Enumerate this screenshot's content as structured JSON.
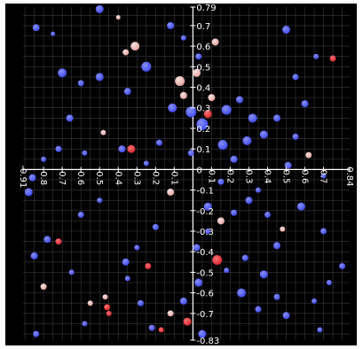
{
  "chart_data": {
    "type": "scatter",
    "title": "",
    "xlabel": "",
    "ylabel": "",
    "xlim": [
      -0.91,
      0.84
    ],
    "ylim": [
      -0.83,
      0.79
    ],
    "grid": true,
    "legend": "none",
    "x_ticks": [
      "-0.91",
      "-0.8",
      "-0.7",
      "-0.6",
      "-0.5",
      "-0.4",
      "-0.3",
      "-0.2",
      "-0.1",
      "0",
      "0.1",
      "0.2",
      "0.3",
      "0.4",
      "0.5",
      "0.6",
      "0.7",
      "0.84"
    ],
    "y_ticks": [
      "0.79",
      "0.7",
      "0.6",
      "0.5",
      "0.4",
      "0.3",
      "0.2",
      "0.1",
      "0",
      "-0.1",
      "-0.2",
      "-0.3",
      "-0.4",
      "-0.5",
      "-0.6",
      "-0.7",
      "-0.83"
    ],
    "colors": {
      "background": "#000000",
      "grid": "#3a3a3a",
      "axis": "#ffffff",
      "blue": "#3f4bff",
      "pink": "#f0a6a0",
      "red": "#e8222a"
    },
    "points": [
      {
        "x": -0.5,
        "y": 0.78,
        "size": 7,
        "color": "blue"
      },
      {
        "x": -0.4,
        "y": 0.74,
        "size": 3,
        "color": "pink"
      },
      {
        "x": -0.84,
        "y": 0.69,
        "size": 6,
        "color": "blue"
      },
      {
        "x": -0.75,
        "y": 0.66,
        "size": 3,
        "color": "blue"
      },
      {
        "x": -0.31,
        "y": 0.6,
        "size": 8,
        "color": "pink"
      },
      {
        "x": -0.36,
        "y": 0.57,
        "size": 5,
        "color": "pink"
      },
      {
        "x": -0.12,
        "y": 0.7,
        "size": 6,
        "color": "blue"
      },
      {
        "x": -0.05,
        "y": 0.64,
        "size": 4,
        "color": "blue"
      },
      {
        "x": 0.12,
        "y": 0.62,
        "size": 6,
        "color": "pink"
      },
      {
        "x": 0.03,
        "y": 0.55,
        "size": 5,
        "color": "blue"
      },
      {
        "x": -0.7,
        "y": 0.47,
        "size": 8,
        "color": "blue"
      },
      {
        "x": -0.6,
        "y": 0.42,
        "size": 5,
        "color": "blue"
      },
      {
        "x": -0.5,
        "y": 0.45,
        "size": 7,
        "color": "blue"
      },
      {
        "x": -0.25,
        "y": 0.5,
        "size": 9,
        "color": "blue"
      },
      {
        "x": -0.35,
        "y": 0.38,
        "size": 6,
        "color": "blue"
      },
      {
        "x": -0.07,
        "y": 0.43,
        "size": 9,
        "color": "pink"
      },
      {
        "x": -0.05,
        "y": 0.36,
        "size": 6,
        "color": "pink"
      },
      {
        "x": 0.02,
        "y": 0.47,
        "size": 7,
        "color": "pink"
      },
      {
        "x": 0.1,
        "y": 0.35,
        "size": 6,
        "color": "pink"
      },
      {
        "x": 0.08,
        "y": 0.27,
        "size": 7,
        "color": "red"
      },
      {
        "x": -0.11,
        "y": 0.3,
        "size": 8,
        "color": "blue"
      },
      {
        "x": -0.01,
        "y": 0.28,
        "size": 10,
        "color": "blue"
      },
      {
        "x": 0.05,
        "y": 0.22,
        "size": 11,
        "color": "blue"
      },
      {
        "x": 0.18,
        "y": 0.29,
        "size": 9,
        "color": "blue"
      },
      {
        "x": 0.25,
        "y": 0.34,
        "size": 6,
        "color": "blue"
      },
      {
        "x": 0.32,
        "y": 0.25,
        "size": 8,
        "color": "blue"
      },
      {
        "x": 0.38,
        "y": 0.17,
        "size": 7,
        "color": "blue"
      },
      {
        "x": 0.45,
        "y": 0.25,
        "size": 6,
        "color": "blue"
      },
      {
        "x": 0.16,
        "y": 0.12,
        "size": 9,
        "color": "blue"
      },
      {
        "x": 0.22,
        "y": 0.05,
        "size": 6,
        "color": "blue"
      },
      {
        "x": 0.29,
        "y": 0.14,
        "size": 8,
        "color": "blue"
      },
      {
        "x": 0.55,
        "y": 0.16,
        "size": 5,
        "color": "blue"
      },
      {
        "x": 0.6,
        "y": 0.32,
        "size": 6,
        "color": "blue"
      },
      {
        "x": 0.5,
        "y": 0.68,
        "size": 7,
        "color": "blue"
      },
      {
        "x": 0.66,
        "y": 0.55,
        "size": 4,
        "color": "blue"
      },
      {
        "x": 0.75,
        "y": 0.54,
        "size": 5,
        "color": "red"
      },
      {
        "x": 0.55,
        "y": 0.45,
        "size": 5,
        "color": "blue"
      },
      {
        "x": 0.62,
        "y": 0.07,
        "size": 5,
        "color": "pink"
      },
      {
        "x": 0.51,
        "y": 0.02,
        "size": 6,
        "color": "blue"
      },
      {
        "x": 0.7,
        "y": -0.03,
        "size": 4,
        "color": "blue"
      },
      {
        "x": -0.33,
        "y": 0.1,
        "size": 7,
        "color": "red"
      },
      {
        "x": -0.38,
        "y": 0.1,
        "size": 6,
        "color": "blue"
      },
      {
        "x": -0.48,
        "y": 0.18,
        "size": 4,
        "color": "pink"
      },
      {
        "x": -0.66,
        "y": 0.25,
        "size": 6,
        "color": "blue"
      },
      {
        "x": -0.72,
        "y": 0.1,
        "size": 5,
        "color": "blue"
      },
      {
        "x": -0.8,
        "y": 0.05,
        "size": 4,
        "color": "blue"
      },
      {
        "x": -0.58,
        "y": 0.08,
        "size": 4,
        "color": "blue"
      },
      {
        "x": -0.18,
        "y": 0.13,
        "size": 5,
        "color": "blue"
      },
      {
        "x": -0.25,
        "y": 0.03,
        "size": 4,
        "color": "blue"
      },
      {
        "x": -0.01,
        "y": 0.08,
        "size": 5,
        "color": "blue"
      },
      {
        "x": -0.86,
        "y": -0.04,
        "size": 6,
        "color": "blue"
      },
      {
        "x": -0.88,
        "y": -0.11,
        "size": 7,
        "color": "blue"
      },
      {
        "x": -0.6,
        "y": -0.22,
        "size": 5,
        "color": "blue"
      },
      {
        "x": -0.5,
        "y": -0.15,
        "size": 4,
        "color": "blue"
      },
      {
        "x": -0.12,
        "y": -0.11,
        "size": 6,
        "color": "pink"
      },
      {
        "x": 0.08,
        "y": -0.18,
        "size": 7,
        "color": "blue"
      },
      {
        "x": 0.15,
        "y": -0.25,
        "size": 6,
        "color": "pink"
      },
      {
        "x": 0.22,
        "y": -0.21,
        "size": 5,
        "color": "blue"
      },
      {
        "x": 0.08,
        "y": -0.3,
        "size": 4,
        "color": "blue"
      },
      {
        "x": 0.3,
        "y": -0.15,
        "size": 6,
        "color": "blue"
      },
      {
        "x": 0.4,
        "y": -0.22,
        "size": 5,
        "color": "blue"
      },
      {
        "x": 0.48,
        "y": -0.29,
        "size": 4,
        "color": "pink"
      },
      {
        "x": 0.58,
        "y": -0.18,
        "size": 7,
        "color": "blue"
      },
      {
        "x": 0.7,
        "y": -0.3,
        "size": 5,
        "color": "blue"
      },
      {
        "x": 0.8,
        "y": -0.47,
        "size": 5,
        "color": "blue"
      },
      {
        "x": 0.73,
        "y": -0.55,
        "size": 4,
        "color": "blue"
      },
      {
        "x": 0.45,
        "y": -0.37,
        "size": 6,
        "color": "blue"
      },
      {
        "x": 0.38,
        "y": -0.51,
        "size": 7,
        "color": "blue"
      },
      {
        "x": 0.28,
        "y": -0.43,
        "size": 5,
        "color": "blue"
      },
      {
        "x": 0.18,
        "y": -0.49,
        "size": 4,
        "color": "blue"
      },
      {
        "x": 0.13,
        "y": -0.44,
        "size": 9,
        "color": "red"
      },
      {
        "x": 0.02,
        "y": -0.38,
        "size": 6,
        "color": "blue"
      },
      {
        "x": 0.03,
        "y": -0.55,
        "size": 7,
        "color": "blue"
      },
      {
        "x": 0.26,
        "y": -0.6,
        "size": 8,
        "color": "blue"
      },
      {
        "x": 0.45,
        "y": -0.62,
        "size": 5,
        "color": "blue"
      },
      {
        "x": 0.5,
        "y": -0.71,
        "size": 6,
        "color": "blue"
      },
      {
        "x": 0.35,
        "y": -0.68,
        "size": 5,
        "color": "blue"
      },
      {
        "x": 0.65,
        "y": -0.64,
        "size": 4,
        "color": "blue"
      },
      {
        "x": 0.05,
        "y": -0.8,
        "size": 7,
        "color": "blue"
      },
      {
        "x": -0.03,
        "y": -0.74,
        "size": 7,
        "color": "red"
      },
      {
        "x": -0.05,
        "y": -0.64,
        "size": 6,
        "color": "blue"
      },
      {
        "x": -0.12,
        "y": -0.7,
        "size": 5,
        "color": "pink"
      },
      {
        "x": -0.22,
        "y": -0.77,
        "size": 5,
        "color": "blue"
      },
      {
        "x": -0.17,
        "y": -0.78,
        "size": 4,
        "color": "red"
      },
      {
        "x": -0.28,
        "y": -0.65,
        "size": 5,
        "color": "blue"
      },
      {
        "x": -0.35,
        "y": -0.53,
        "size": 4,
        "color": "blue"
      },
      {
        "x": -0.24,
        "y": -0.47,
        "size": 5,
        "color": "red"
      },
      {
        "x": -0.36,
        "y": -0.45,
        "size": 6,
        "color": "blue"
      },
      {
        "x": -0.3,
        "y": -0.38,
        "size": 4,
        "color": "blue"
      },
      {
        "x": -0.46,
        "y": -0.67,
        "size": 5,
        "color": "red"
      },
      {
        "x": -0.47,
        "y": -0.62,
        "size": 4,
        "color": "pink"
      },
      {
        "x": -0.55,
        "y": -0.65,
        "size": 4,
        "color": "pink"
      },
      {
        "x": -0.45,
        "y": -0.7,
        "size": 4,
        "color": "red"
      },
      {
        "x": -0.8,
        "y": -0.57,
        "size": 5,
        "color": "pink"
      },
      {
        "x": -0.85,
        "y": -0.42,
        "size": 6,
        "color": "blue"
      },
      {
        "x": -0.72,
        "y": -0.35,
        "size": 5,
        "color": "red"
      },
      {
        "x": -0.78,
        "y": -0.34,
        "size": 6,
        "color": "blue"
      },
      {
        "x": -0.65,
        "y": -0.5,
        "size": 4,
        "color": "blue"
      },
      {
        "x": -0.84,
        "y": -0.8,
        "size": 5,
        "color": "blue"
      },
      {
        "x": -0.58,
        "y": -0.75,
        "size": 4,
        "color": "blue"
      },
      {
        "x": 0.15,
        "y": -0.06,
        "size": 5,
        "color": "blue"
      },
      {
        "x": 0.35,
        "y": -0.1,
        "size": 4,
        "color": "blue"
      },
      {
        "x": -0.2,
        "y": -0.28,
        "size": 5,
        "color": "blue"
      },
      {
        "x": 0.68,
        "y": -0.78,
        "size": 4,
        "color": "blue"
      }
    ]
  }
}
